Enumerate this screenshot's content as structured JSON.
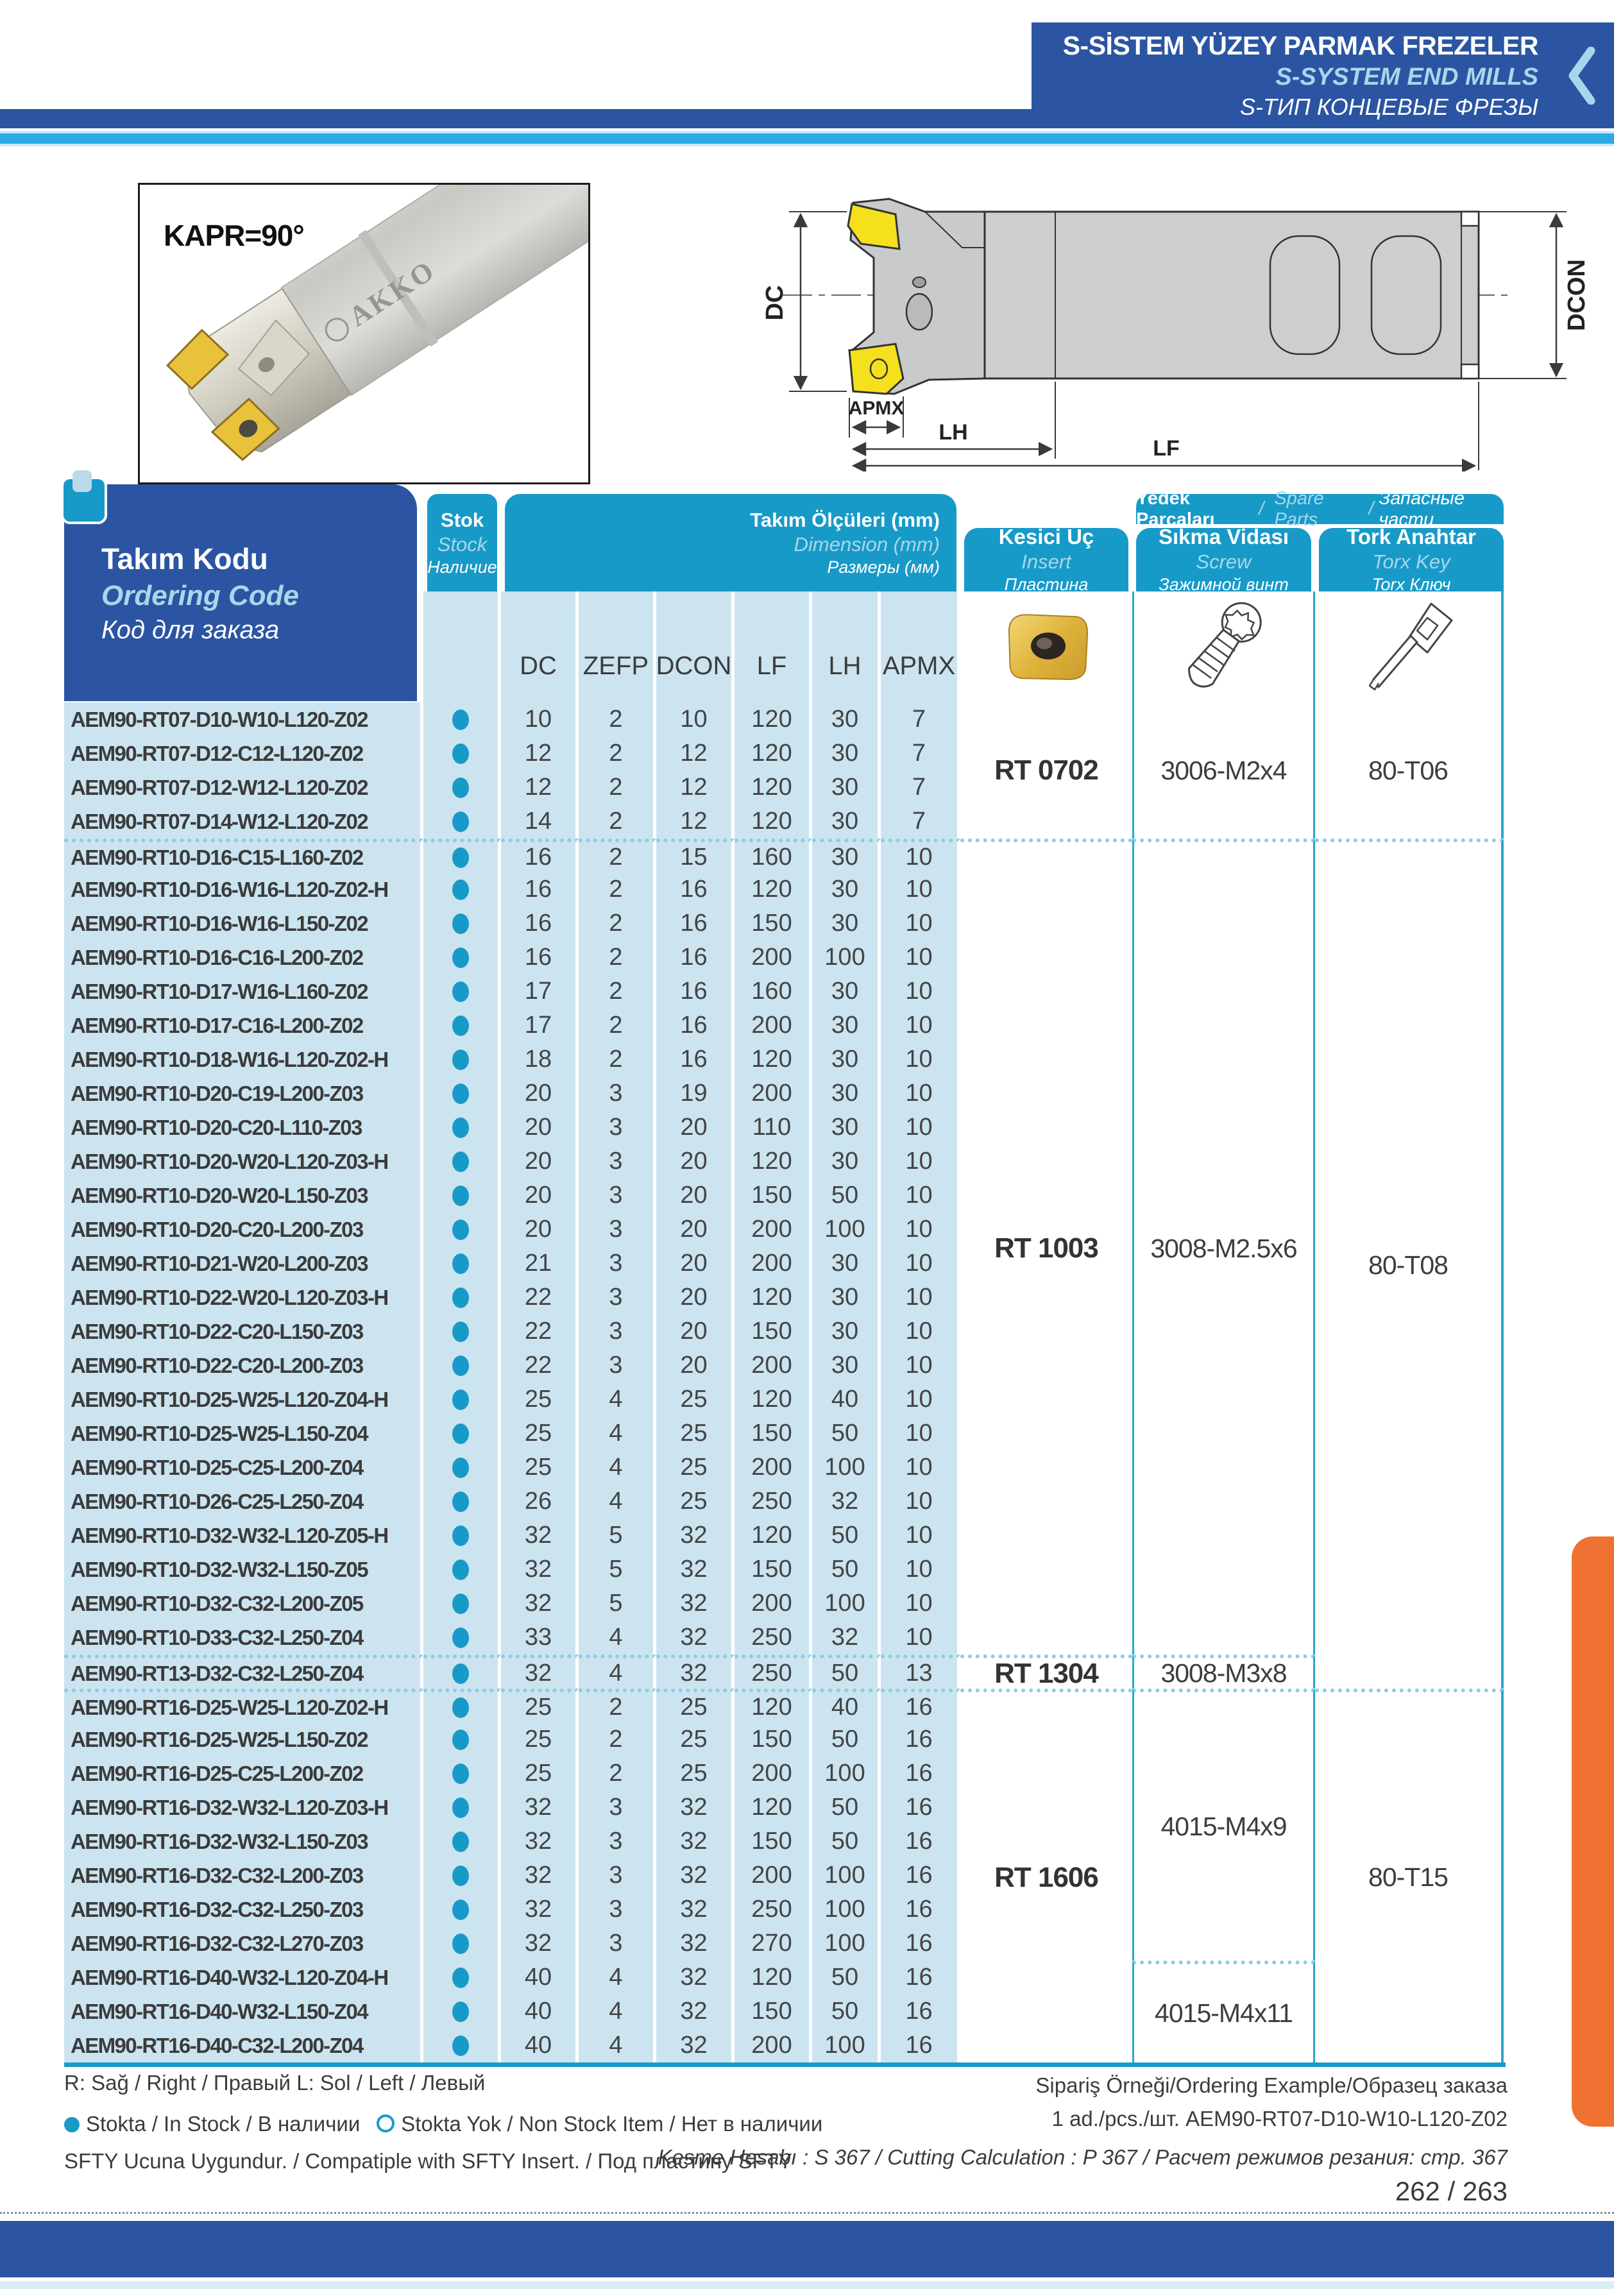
{
  "banner": {
    "title_tr": "S-SİSTEM YÜZEY PARMAK FREZELER",
    "title_en": "S-SYSTEM END MILLS",
    "title_ru": "S-ТИП КОНЦЕВЫЕ ФРЕЗЫ"
  },
  "photo": {
    "caption": "KAPR=90°",
    "brand": "AKKO"
  },
  "diagram": {
    "labels": {
      "dc": "DC",
      "dcon": "DCON",
      "apmx": "APMX",
      "lh": "LH",
      "lf": "LF"
    }
  },
  "table": {
    "ordering_code_header": {
      "tr": "Takım Kodu",
      "en": "Ordering Code",
      "ru": "Код для заказа"
    },
    "stock_header": {
      "tr": "Stok",
      "en": "Stock",
      "ru": "Наличие"
    },
    "dimension_header": {
      "tr": "Takım Ölçüleri (mm)",
      "en": "Dimension (mm)",
      "ru": "Размеры (мм)"
    },
    "spare_parts_header": {
      "tr": "Yedek Parçaları",
      "en": "Spare Parts",
      "ru": "Запасные части"
    },
    "insert_header": {
      "tr": "Kesici Uç",
      "en": "Insert",
      "ru": "Пластина"
    },
    "screw_header": {
      "tr": "Sıkma Vidası",
      "en": "Screw",
      "ru": "Зажимной винт"
    },
    "torx_header": {
      "tr": "Tork Anahtar",
      "en": "Torx Key",
      "ru": "Torx Ключ"
    },
    "dim_columns": [
      "DC",
      "ZEFP",
      "DCON",
      "LF",
      "LH",
      "APMX"
    ],
    "stock_legend_note": "filled dot = in stock",
    "groups": [
      {
        "insert": "RT 0702",
        "screw": "3006-M2x4",
        "torx": "80-T06",
        "torx_rows": 4,
        "rows": [
          [
            "AEM90-RT07-D10-W10-L120-Z02",
            1,
            10,
            2,
            10,
            120,
            30,
            7
          ],
          [
            "AEM90-RT07-D12-C12-L120-Z02",
            1,
            12,
            2,
            12,
            120,
            30,
            7
          ],
          [
            "AEM90-RT07-D12-W12-L120-Z02",
            1,
            12,
            2,
            12,
            120,
            30,
            7
          ],
          [
            "AEM90-RT07-D14-W12-L120-Z02",
            1,
            14,
            2,
            12,
            120,
            30,
            7
          ]
        ]
      },
      {
        "insert": "RT 1003",
        "screw": "3008-M2.5x6",
        "torx": "80-T08",
        "torx_rows": 25,
        "rows": [
          [
            "AEM90-RT10-D16-C15-L160-Z02",
            1,
            16,
            2,
            15,
            160,
            30,
            10
          ],
          [
            "AEM90-RT10-D16-W16-L120-Z02-H",
            1,
            16,
            2,
            16,
            120,
            30,
            10
          ],
          [
            "AEM90-RT10-D16-W16-L150-Z02",
            1,
            16,
            2,
            16,
            150,
            30,
            10
          ],
          [
            "AEM90-RT10-D16-C16-L200-Z02",
            1,
            16,
            2,
            16,
            200,
            100,
            10
          ],
          [
            "AEM90-RT10-D17-W16-L160-Z02",
            1,
            17,
            2,
            16,
            160,
            30,
            10
          ],
          [
            "AEM90-RT10-D17-C16-L200-Z02",
            1,
            17,
            2,
            16,
            200,
            30,
            10
          ],
          [
            "AEM90-RT10-D18-W16-L120-Z02-H",
            1,
            18,
            2,
            16,
            120,
            30,
            10
          ],
          [
            "AEM90-RT10-D20-C19-L200-Z03",
            1,
            20,
            3,
            19,
            200,
            30,
            10
          ],
          [
            "AEM90-RT10-D20-C20-L110-Z03",
            1,
            20,
            3,
            20,
            110,
            30,
            10
          ],
          [
            "AEM90-RT10-D20-W20-L120-Z03-H",
            1,
            20,
            3,
            20,
            120,
            30,
            10
          ],
          [
            "AEM90-RT10-D20-W20-L150-Z03",
            1,
            20,
            3,
            20,
            150,
            50,
            10
          ],
          [
            "AEM90-RT10-D20-C20-L200-Z03",
            1,
            20,
            3,
            20,
            200,
            100,
            10
          ],
          [
            "AEM90-RT10-D21-W20-L200-Z03",
            1,
            21,
            3,
            20,
            200,
            30,
            10
          ],
          [
            "AEM90-RT10-D22-W20-L120-Z03-H",
            1,
            22,
            3,
            20,
            120,
            30,
            10
          ],
          [
            "AEM90-RT10-D22-C20-L150-Z03",
            1,
            22,
            3,
            20,
            150,
            30,
            10
          ],
          [
            "AEM90-RT10-D22-C20-L200-Z03",
            1,
            22,
            3,
            20,
            200,
            30,
            10
          ],
          [
            "AEM90-RT10-D25-W25-L120-Z04-H",
            1,
            25,
            4,
            25,
            120,
            40,
            10
          ],
          [
            "AEM90-RT10-D25-W25-L150-Z04",
            1,
            25,
            4,
            25,
            150,
            50,
            10
          ],
          [
            "AEM90-RT10-D25-C25-L200-Z04",
            1,
            25,
            4,
            25,
            200,
            100,
            10
          ],
          [
            "AEM90-RT10-D26-C25-L250-Z04",
            1,
            26,
            4,
            25,
            250,
            32,
            10
          ],
          [
            "AEM90-RT10-D32-W32-L120-Z05-H",
            1,
            32,
            5,
            32,
            120,
            50,
            10
          ],
          [
            "AEM90-RT10-D32-W32-L150-Z05",
            1,
            32,
            5,
            32,
            150,
            50,
            10
          ],
          [
            "AEM90-RT10-D32-C32-L200-Z05",
            1,
            32,
            5,
            32,
            200,
            100,
            10
          ],
          [
            "AEM90-RT10-D33-C32-L250-Z04",
            1,
            33,
            4,
            32,
            250,
            32,
            10
          ]
        ]
      },
      {
        "insert": "RT 1304",
        "screw": "3008-M3x8",
        "torx": null,
        "torx_rows": 0,
        "rows": [
          [
            "AEM90-RT13-D32-C32-L250-Z04",
            1,
            32,
            4,
            32,
            250,
            50,
            13
          ]
        ]
      },
      {
        "insert": "RT 1606",
        "screw": "4015-M4x9",
        "screw2": "4015-M4x11",
        "screw2_rows": 3,
        "torx": "80-T15",
        "torx_rows": 11,
        "rows": [
          [
            "AEM90-RT16-D25-W25-L120-Z02-H",
            1,
            25,
            2,
            25,
            120,
            40,
            16
          ],
          [
            "AEM90-RT16-D25-W25-L150-Z02",
            1,
            25,
            2,
            25,
            150,
            50,
            16
          ],
          [
            "AEM90-RT16-D25-C25-L200-Z02",
            1,
            25,
            2,
            25,
            200,
            100,
            16
          ],
          [
            "AEM90-RT16-D32-W32-L120-Z03-H",
            1,
            32,
            3,
            32,
            120,
            50,
            16
          ],
          [
            "AEM90-RT16-D32-W32-L150-Z03",
            1,
            32,
            3,
            32,
            150,
            50,
            16
          ],
          [
            "AEM90-RT16-D32-C32-L200-Z03",
            1,
            32,
            3,
            32,
            200,
            100,
            16
          ],
          [
            "AEM90-RT16-D32-C32-L250-Z03",
            1,
            32,
            3,
            32,
            250,
            100,
            16
          ],
          [
            "AEM90-RT16-D32-C32-L270-Z03",
            1,
            32,
            3,
            32,
            270,
            100,
            16
          ],
          [
            "AEM90-RT16-D40-W32-L120-Z04-H",
            1,
            40,
            4,
            32,
            120,
            50,
            16
          ],
          [
            "AEM90-RT16-D40-W32-L150-Z04",
            1,
            40,
            4,
            32,
            150,
            50,
            16
          ],
          [
            "AEM90-RT16-D40-C32-L200-Z04",
            1,
            40,
            4,
            32,
            200,
            100,
            16
          ]
        ]
      }
    ]
  },
  "footer": {
    "line_rl": "R: Sağ / Right / Правый  L: Sol / Left / Левый",
    "legend_in": "Stokta / In Stock / В наличии",
    "legend_out": "Stokta Yok / Non Stock Item / Нет в наличии",
    "line_sfty": "SFTY Ucuna Uygundur. / Compatiple with SFTY Insert. / Под пластину SFTY",
    "ordering_example_title": "Sipariş Örneği/Ordering Example/Образец заказа",
    "ordering_example_value": "1 ad./pcs./шт.  AEM90-RT07-D10-W10-L120-Z02",
    "cutting_calc": "Kesme Hesabı : S 367 / Cutting Calculation : P 367 / Расчет режимов резания: стр. 367",
    "page_number": "262 / 263"
  },
  "colors": {
    "dark_blue": "#2B55A2",
    "teal": "#189AC8",
    "row_blue": "#CBE4F0",
    "light_text": "#A9D6EC",
    "cyan_stripe": "#29ABE2",
    "orange_tab": "#EF7233",
    "insert_yellow": "#F4E01C"
  }
}
